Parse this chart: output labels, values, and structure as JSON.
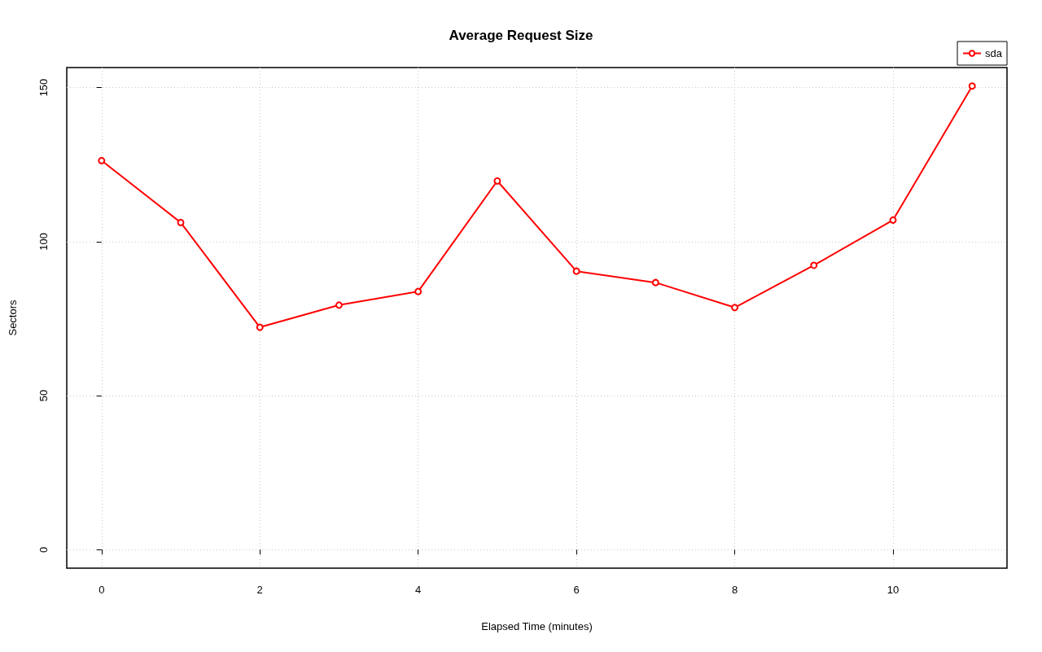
{
  "chart_data": {
    "type": "line",
    "title": "Average Request Size",
    "xlabel": "Elapsed Time (minutes)",
    "ylabel": "Sectors",
    "x": [
      0,
      1,
      2,
      3,
      4,
      5,
      6,
      7,
      8,
      9,
      10,
      11
    ],
    "series": [
      {
        "name": "sda",
        "color": "#ff0000",
        "values": [
          126.3,
          106.2,
          72.2,
          79.4,
          83.8,
          119.7,
          90.4,
          86.7,
          78.6,
          92.3,
          107.0,
          150.5
        ]
      }
    ],
    "xlim": [
      -0.44,
      11.44
    ],
    "xticks": [
      0,
      2,
      4,
      6,
      8,
      10
    ],
    "ylim": [
      -6,
      156.5
    ],
    "yticks": [
      0,
      50,
      100,
      150
    ],
    "grid": true,
    "legend": "top right",
    "marker": "circle",
    "line_style": "solid"
  }
}
